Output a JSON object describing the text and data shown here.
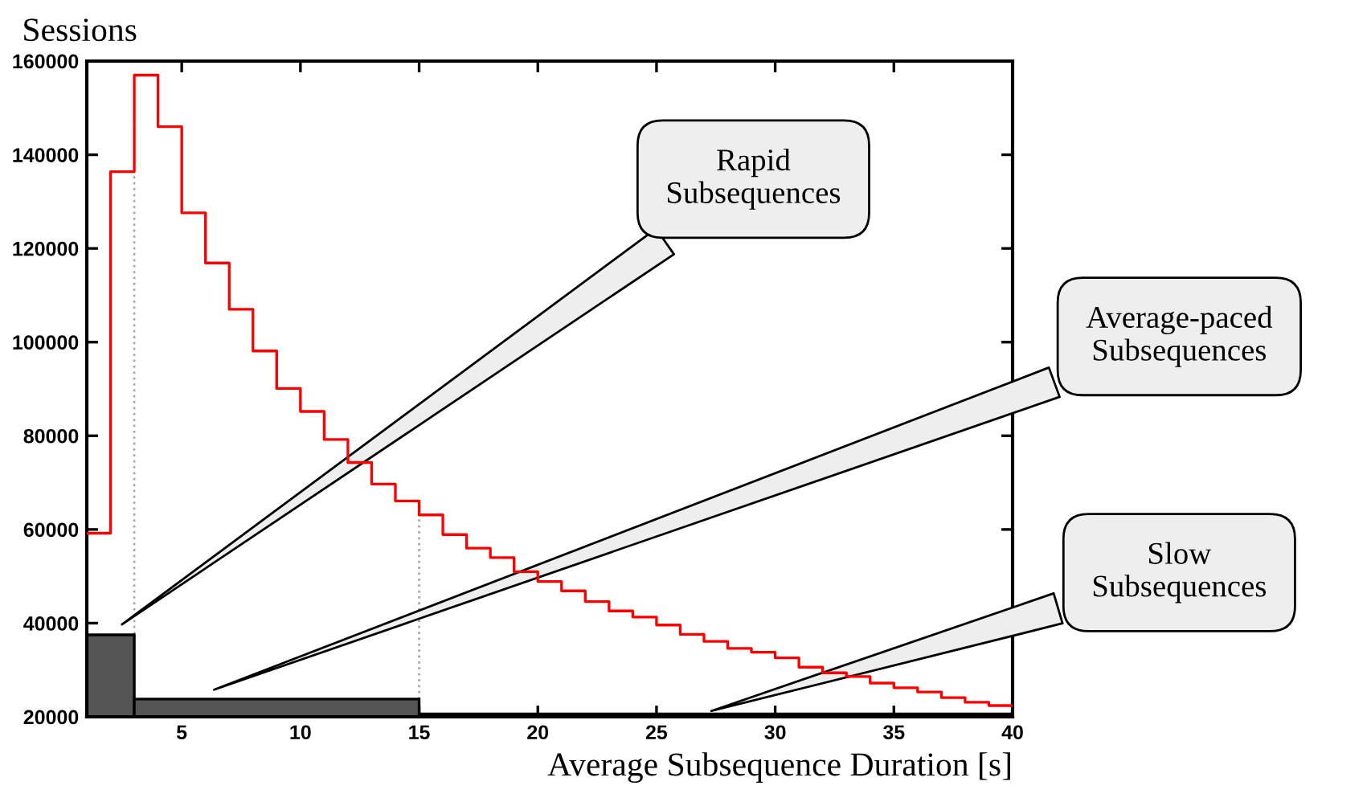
{
  "chart_data": {
    "type": "step",
    "ylabel": "Sessions",
    "xlabel": "Average Subsequence Duration [s]",
    "series": [
      {
        "type": "histogram",
        "color": "#555555",
        "bins": [
          1,
          3,
          15,
          40
        ],
        "values": [
          37500,
          23800,
          20600
        ]
      },
      {
        "color": "#ff0000",
        "x": [
          1,
          2,
          3,
          4,
          5,
          6,
          7,
          8,
          9,
          10,
          11,
          12,
          13,
          14,
          15,
          16,
          17,
          18,
          19,
          20,
          21,
          22,
          23,
          24,
          25,
          26,
          27,
          28,
          29,
          30,
          31,
          32,
          33,
          34,
          35,
          36,
          37,
          38,
          39,
          40
        ],
        "values": [
          59200,
          136400,
          157000,
          146000,
          127600,
          116900,
          107000,
          98100,
          90100,
          85200,
          79200,
          74300,
          69700,
          66100,
          63100,
          58900,
          56000,
          54000,
          51000,
          48900,
          46900,
          44600,
          42600,
          41300,
          39600,
          37600,
          36100,
          34600,
          33800,
          32600,
          30600,
          29400,
          28600,
          27200,
          26200,
          25300,
          24100,
          23100,
          22400,
          22400
        ]
      }
    ],
    "xlim": [
      1,
      40
    ],
    "xticks": [
      5,
      10,
      15,
      20,
      25,
      30,
      35,
      40
    ],
    "ylim": [
      20000,
      160000
    ],
    "yticks": [
      20000,
      40000,
      60000,
      80000,
      100000,
      120000,
      140000,
      160000
    ],
    "ref_lines": [
      {
        "axis": "x",
        "value": 3,
        "color": "#aaaaaa",
        "line_style": "dotted"
      },
      {
        "axis": "x",
        "value": 15,
        "color": "#aaaaaa",
        "line_style": "dotted"
      }
    ],
    "annotations": [
      "Rapid\nSubsequences",
      "Average-paced\nSubsequences",
      "Slow\nSubsequences"
    ],
    "grid": false
  }
}
